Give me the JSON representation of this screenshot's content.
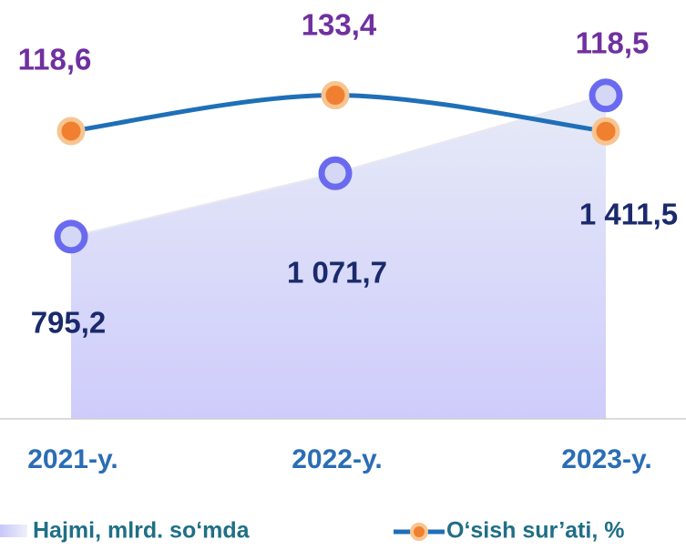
{
  "chart_data": {
    "type": "area-line",
    "categories": [
      "2021-y.",
      "2022-y.",
      "2023-y."
    ],
    "series": [
      {
        "name": "Hajmi, mlrd. so‘mda",
        "type": "area",
        "color": "#6a6af0",
        "values": [
          795.2,
          1071.7,
          1411.5
        ],
        "value_labels": [
          "795,2",
          "1 071,7",
          "1 411,5"
        ]
      },
      {
        "name": "O‘sish sur’ati, %",
        "type": "line",
        "axis": "y2",
        "color": "#1f6fb8",
        "values": [
          118.6,
          133.4,
          118.5
        ],
        "value_labels": [
          "118,6",
          "133,4",
          "118,5"
        ]
      }
    ],
    "ylim": [
      0,
      1800
    ],
    "y2lim": [
      0,
      170
    ],
    "legend": "bottom"
  }
}
